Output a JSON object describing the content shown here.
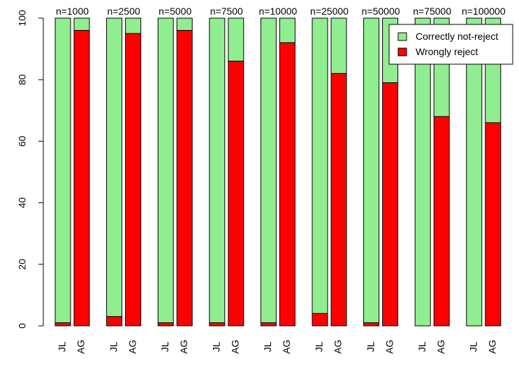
{
  "chart_data": {
    "type": "bar",
    "stacked": true,
    "title": "",
    "xlabel": "",
    "ylabel": "",
    "ylim": [
      0,
      100
    ],
    "yticks": [
      0,
      20,
      40,
      60,
      80,
      100
    ],
    "grid": false,
    "legend_position": "top-right",
    "groups": [
      "n=1000",
      "n=2500",
      "n=5000",
      "n=7500",
      "n=10000",
      "n=25000",
      "n=50000",
      "n=75000",
      "n=100000"
    ],
    "categories": [
      "JL",
      "AG",
      "JL",
      "AG",
      "JL",
      "AG",
      "JL",
      "AG",
      "JL",
      "AG",
      "JL",
      "AG",
      "JL",
      "AG",
      "JL",
      "AG",
      "JL",
      "AG"
    ],
    "series": [
      {
        "name": "Wrongly reject",
        "color": "#ff0000",
        "values": [
          1,
          96,
          3,
          95,
          1,
          96,
          1,
          86,
          1,
          92,
          4,
          82,
          1,
          79,
          0,
          68,
          0,
          66
        ]
      },
      {
        "name": "Correctly not-reject",
        "color": "#90ee90",
        "values": [
          99,
          4,
          97,
          5,
          99,
          4,
          99,
          14,
          99,
          8,
          96,
          18,
          99,
          21,
          100,
          32,
          100,
          34
        ]
      }
    ],
    "legend": [
      {
        "label": "Correctly not-reject",
        "color": "#90ee90"
      },
      {
        "label": "Wrongly reject",
        "color": "#ff0000"
      }
    ]
  }
}
